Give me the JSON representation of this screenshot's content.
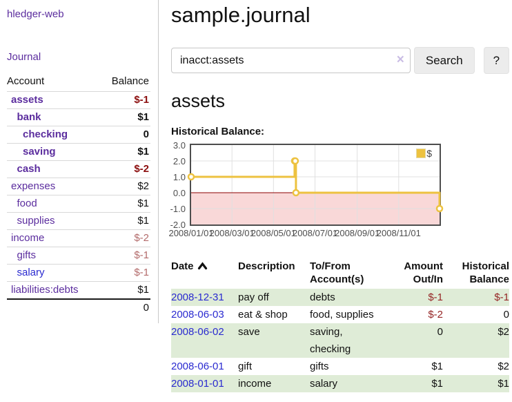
{
  "sidebar": {
    "app_title": "hledger-web",
    "journal_link": "Journal",
    "account_table": {
      "account_header": "Account",
      "balance_header": "Balance",
      "rows": [
        {
          "name": "assets",
          "depth": 1,
          "emphasized": true,
          "link_color": "purple",
          "balance": "$-1",
          "balance_style": "neg-strong"
        },
        {
          "name": "bank",
          "depth": 2,
          "emphasized": true,
          "link_color": "purple",
          "balance": "$1",
          "balance_style": "pos-strong"
        },
        {
          "name": "checking",
          "depth": 3,
          "emphasized": true,
          "link_color": "purple",
          "balance": "0",
          "balance_style": "pos-strong"
        },
        {
          "name": "saving",
          "depth": 3,
          "emphasized": true,
          "link_color": "purple",
          "balance": "$1",
          "balance_style": "pos-strong"
        },
        {
          "name": "cash",
          "depth": 2,
          "emphasized": true,
          "link_color": "purple",
          "balance": "$-2",
          "balance_style": "neg-strong"
        },
        {
          "name": "expenses",
          "depth": 1,
          "emphasized": false,
          "link_color": "purple",
          "balance": "$2",
          "balance_style": "pos"
        },
        {
          "name": "food",
          "depth": 2,
          "emphasized": false,
          "link_color": "purple",
          "balance": "$1",
          "balance_style": "pos"
        },
        {
          "name": "supplies",
          "depth": 2,
          "emphasized": false,
          "link_color": "purple",
          "balance": "$1",
          "balance_style": "pos"
        },
        {
          "name": "income",
          "depth": 1,
          "emphasized": false,
          "link_color": "purple",
          "balance": "$-2",
          "balance_style": "neg"
        },
        {
          "name": "gifts",
          "depth": 2,
          "emphasized": false,
          "link_color": "purple",
          "balance": "$-1",
          "balance_style": "neg"
        },
        {
          "name": "salary",
          "depth": 2,
          "emphasized": false,
          "link_color": "blue",
          "balance": "$-1",
          "balance_style": "neg"
        },
        {
          "name": "liabilities:debts",
          "depth": 1,
          "emphasized": false,
          "link_color": "purple",
          "balance": "$1",
          "balance_style": "pos"
        }
      ],
      "total": "0"
    }
  },
  "header": {
    "page_title": "sample.journal"
  },
  "search": {
    "query": "inacct:assets",
    "clear_icon": "×",
    "search_button": "Search",
    "help_button": "?"
  },
  "content": {
    "account_heading": "assets",
    "chart_label": "Historical Balance:"
  },
  "chart_data": {
    "type": "line",
    "title": "Historical Balance:",
    "xlim": [
      "2008-01-01",
      "2008-12-31"
    ],
    "ylim": [
      -2,
      3
    ],
    "y_ticks": [
      3,
      2,
      1,
      0,
      -1,
      -2
    ],
    "x_ticks": [
      {
        "pos": "2008-01-01",
        "label": "2008/01/01"
      },
      {
        "pos": "2008-03-01",
        "label": "2008/03/01"
      },
      {
        "pos": "2008-05-01",
        "label": "2008/05/01"
      },
      {
        "pos": "2008-07-01",
        "label": "2008/07/01"
      },
      {
        "pos": "2008-09-01",
        "label": "2008/09/01"
      },
      {
        "pos": "2008-11-01",
        "label": "2008/11/01"
      }
    ],
    "series": [
      {
        "name": "$",
        "color": "#EDC240",
        "steps": true,
        "points": [
          {
            "x": "2008-01-01",
            "y": 1
          },
          {
            "x": "2008-06-01",
            "y": 2
          },
          {
            "x": "2008-06-02",
            "y": 2
          },
          {
            "x": "2008-06-03",
            "y": 0
          },
          {
            "x": "2008-12-31",
            "y": -1
          }
        ]
      }
    ],
    "legend": {
      "label": "$",
      "position": "top-right"
    },
    "grid": true,
    "grid_color": "#e0e0e0",
    "negative_fill": "#f9d8d8",
    "zero_line_color": "#8b0000",
    "plot_border_color": "#4d4d4d"
  },
  "register_table": {
    "headers": {
      "date": "Date",
      "description": "Description",
      "accounts": "To/From Account(s)",
      "amount": "Amount Out/In",
      "balance": "Historical Balance"
    },
    "rows": [
      {
        "date": "2008-12-31",
        "description": "pay off",
        "accounts": "debts",
        "amount": "$-1",
        "amount_negative": true,
        "balance": "$-1",
        "balance_negative": true,
        "shaded": true
      },
      {
        "date": "2008-06-03",
        "description": "eat & shop",
        "accounts": "food, supplies",
        "amount": "$-2",
        "amount_negative": true,
        "balance": "0",
        "balance_negative": false,
        "shaded": false
      },
      {
        "date": "2008-06-02",
        "description": "save",
        "accounts": "saving, checking",
        "amount": "0",
        "amount_negative": false,
        "balance": "$2",
        "balance_negative": false,
        "shaded": true
      },
      {
        "date": "2008-06-01",
        "description": "gift",
        "accounts": "gifts",
        "amount": "$1",
        "amount_negative": false,
        "balance": "$2",
        "balance_negative": false,
        "shaded": false
      },
      {
        "date": "2008-01-01",
        "description": "income",
        "accounts": "salary",
        "amount": "$1",
        "amount_negative": false,
        "balance": "$1",
        "balance_negative": false,
        "shaded": true
      }
    ]
  },
  "colors": {
    "link_purple": "#5b2d9e",
    "link_blue": "#2a2ad0",
    "negative_strong": "#8b0e0e",
    "negative_soft": "#b36b6b",
    "negative_table": "#952525",
    "row_stripe_green": "#dfecd7",
    "series_gold": "#EDC240"
  }
}
